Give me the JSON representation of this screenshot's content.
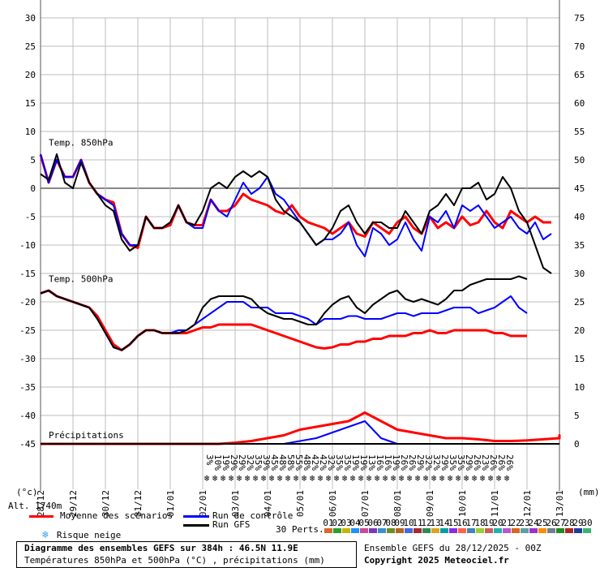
{
  "chart_data": {
    "type": "line",
    "title": "Diagramme des ensembles GEFS sur 384h : 46.5N 11.9E",
    "subtitle": "Températures 850hPa et 500hPa (°C) , précipitations (mm)",
    "run_info": "Ensemble GEFS du 28/12/2025 - 00Z",
    "copyright": "Copyright 2025 Meteociel.fr",
    "left_axis_unit": "(°c)",
    "right_axis_unit": "(mm)",
    "altitude_label": "Alt. 1740m",
    "left_ticks": [
      "30",
      "25",
      "20",
      "15",
      "10",
      "5",
      "0",
      "-5",
      "-10",
      "-15",
      "-20",
      "-25",
      "-30",
      "-35",
      "-40",
      "-45"
    ],
    "right_ticks": [
      "75",
      "70",
      "65",
      "60",
      "55",
      "50",
      "45",
      "40",
      "35",
      "30",
      "25",
      "20",
      "15",
      "10",
      "5",
      "0"
    ],
    "ylim_temp": [
      -45,
      30
    ],
    "ylim_precip": [
      0,
      75
    ],
    "x_ticks": [
      "28/12",
      "29/12",
      "30/12",
      "31/12",
      "01/01",
      "02/01",
      "03/01",
      "04/01",
      "05/01",
      "06/01",
      "07/01",
      "08/01",
      "09/01",
      "10/01",
      "11/01",
      "12/01",
      "13/01"
    ],
    "grid": true,
    "panel_labels": {
      "t850": "Temp. 850hPa",
      "t500": "Temp. 500hPa",
      "precip": "Précipitations"
    },
    "snow_risk_percent": [
      "3%",
      "10%",
      "19%",
      "29%",
      "29%",
      "32%",
      "35%",
      "39%",
      "45%",
      "48%",
      "58%",
      "55%",
      "48%",
      "42%",
      "42%",
      "32%",
      "35%",
      "35%",
      "19%",
      "19%",
      "13%",
      "16%",
      "16%",
      "19%",
      "26%",
      "26%",
      "29%",
      "32%",
      "32%",
      "29%",
      "35%",
      "35%",
      "29%",
      "26%",
      "23%",
      "26%",
      "26%",
      "26%"
    ],
    "snow_risk_start_day": 5.0,
    "snow_risk_step_days": 0.25,
    "series": [
      {
        "name": "Moyenne des scénarios",
        "color": "#ff0000",
        "group": "t850",
        "x_start": 0,
        "x_step": 0.25,
        "values": [
          5.9,
          1,
          5,
          2,
          2,
          5,
          1,
          -1,
          -2,
          -2.5,
          -8,
          -10,
          -10.5,
          -5,
          -7,
          -7,
          -6.5,
          -3,
          -6,
          -6.5,
          -6.5,
          -2,
          -4,
          -4,
          -3,
          -1,
          -2,
          -2.5,
          -3,
          -4,
          -4.5,
          -3,
          -5,
          -6,
          -6.5,
          -7,
          -8,
          -7,
          -6,
          -8,
          -8.5,
          -6,
          -7,
          -8,
          -6,
          -5,
          -7,
          -8,
          -5,
          -7,
          -6,
          -7,
          -5,
          -6.5,
          -6,
          -4,
          -6,
          -7,
          -4,
          -5,
          -6,
          -5,
          -6,
          -6
        ]
      },
      {
        "name": "Run de contrôle",
        "color": "#0000ff",
        "group": "t850",
        "x_start": 0,
        "x_step": 0.25,
        "values": [
          6,
          1,
          5,
          2,
          2,
          5,
          1,
          -1,
          -2,
          -3,
          -8,
          -10,
          -10,
          -5,
          -7,
          -7,
          -6,
          -3,
          -6,
          -7,
          -7,
          -2,
          -4,
          -5,
          -2,
          1,
          -1,
          0,
          2,
          -1,
          -2,
          -4,
          -6,
          -8,
          -10,
          -9,
          -9,
          -8,
          -6,
          -10,
          -12,
          -7,
          -8,
          -10,
          -9,
          -6,
          -9,
          -11,
          -5,
          -6,
          -4,
          -7,
          -3,
          -4,
          -3,
          -5,
          -7,
          -6,
          -5,
          -7,
          -8,
          -6,
          -9,
          -8
        ]
      },
      {
        "name": "Run GFS",
        "color": "#000000",
        "group": "t850",
        "x_start": 0,
        "x_step": 0.25,
        "values": [
          2.5,
          1.5,
          6,
          1,
          0,
          4.5,
          1,
          -1,
          -3,
          -4,
          -9,
          -11,
          -10,
          -5,
          -7,
          -7,
          -6,
          -3,
          -6,
          -6.5,
          -4,
          0,
          1,
          0,
          2,
          3,
          2,
          3,
          2,
          -2,
          -4,
          -5,
          -6,
          -8,
          -10,
          -9,
          -7,
          -4,
          -3,
          -6,
          -8,
          -6,
          -6,
          -7,
          -7,
          -4,
          -6,
          -8,
          -4,
          -3,
          -1,
          -3,
          0,
          0,
          1,
          -2,
          -1,
          2,
          0,
          -4,
          -6,
          -10,
          -14,
          -15
        ]
      },
      {
        "name": "Moyenne des scénarios",
        "color": "#ff0000",
        "group": "t500",
        "x_start": 0,
        "x_step": 0.25,
        "values": [
          -18.5,
          -18,
          -19,
          -19.5,
          -20,
          -20.5,
          -21,
          -22.5,
          -25,
          -27.5,
          -28.5,
          -27.5,
          -26,
          -25,
          -25,
          -25.5,
          -25.5,
          -25.5,
          -25.5,
          -25,
          -24.5,
          -24.5,
          -24,
          -24,
          -24,
          -24,
          -24,
          -24.5,
          -25,
          -25.5,
          -26,
          -26.5,
          -27,
          -27.5,
          -28,
          -28.2,
          -28,
          -27.5,
          -27.5,
          -27,
          -27,
          -26.5,
          -26.5,
          -26,
          -26,
          -26,
          -25.5,
          -25.5,
          -25,
          -25.5,
          -25.5,
          -25,
          -25,
          -25,
          -25,
          -25,
          -25.5,
          -25.5,
          -26,
          -26,
          -26
        ]
      },
      {
        "name": "Run de contrôle",
        "color": "#0000ff",
        "group": "t500",
        "x_start": 0,
        "x_step": 0.25,
        "values": [
          -18.5,
          -18,
          -19,
          -19.5,
          -20,
          -20.5,
          -21,
          -23,
          -25.5,
          -28,
          -28.5,
          -27.5,
          -26,
          -25,
          -25,
          -25.5,
          -25.5,
          -25,
          -25,
          -24,
          -23,
          -22,
          -21,
          -20,
          -20,
          -20,
          -21,
          -21,
          -21,
          -22,
          -22,
          -22,
          -22.5,
          -23,
          -24,
          -23,
          -23,
          -23,
          -22.5,
          -22.5,
          -23,
          -23,
          -23,
          -22.5,
          -22,
          -22,
          -22.5,
          -22,
          -22,
          -22,
          -21.5,
          -21,
          -21,
          -21,
          -22,
          -21.5,
          -21,
          -20,
          -19,
          -21,
          -22
        ]
      },
      {
        "name": "Run GFS",
        "color": "#000000",
        "group": "t500",
        "x_start": 0,
        "x_step": 0.25,
        "values": [
          -18.5,
          -18,
          -19,
          -19.5,
          -20,
          -20.5,
          -21,
          -23,
          -25.5,
          -28,
          -28.5,
          -27.5,
          -26,
          -25,
          -25,
          -25.5,
          -25.5,
          -25.5,
          -25,
          -24,
          -21,
          -19.5,
          -19,
          -19,
          -19,
          -19,
          -19.5,
          -21,
          -22,
          -22.5,
          -23,
          -23,
          -23.5,
          -24,
          -24,
          -22,
          -20.5,
          -19.5,
          -19,
          -21,
          -22,
          -20.5,
          -19.5,
          -18.5,
          -18,
          -19.5,
          -20,
          -19.5,
          -20,
          -20.5,
          -19.5,
          -18,
          -18,
          -17,
          -16.5,
          -16,
          -16,
          -16,
          -16,
          -15.5,
          -16
        ]
      },
      {
        "name": "Moyenne des scénarios",
        "color": "#ff0000",
        "group": "precip",
        "x_start": 0,
        "x_step": 0.5,
        "values": [
          0,
          0,
          0,
          0,
          0,
          0,
          0,
          0,
          0,
          0,
          0,
          0,
          0.2,
          0.5,
          1,
          1.5,
          2.5,
          3,
          3.5,
          4,
          5.5,
          4,
          2.5,
          2,
          1.5,
          1,
          1,
          0.8,
          0.5,
          0.5,
          0.6,
          0.8,
          1,
          1.2,
          1.3,
          1,
          1.2,
          1.5,
          1
        ]
      },
      {
        "name": "Run de contrôle",
        "color": "#0000ff",
        "group": "precip",
        "x_start": 0,
        "x_step": 0.5,
        "values": [
          0,
          0,
          0,
          0,
          0,
          0,
          0,
          0,
          0,
          0,
          0,
          0,
          0,
          0,
          0,
          0,
          0.5,
          1,
          2,
          3,
          4,
          1,
          0,
          0,
          0,
          0,
          0,
          0,
          0,
          0,
          0,
          0,
          0,
          0,
          0,
          0,
          0,
          0,
          0
        ]
      },
      {
        "name": "Run GFS",
        "color": "#000000",
        "group": "precip",
        "x_start": 0,
        "x_step": 0.5,
        "values": [
          0,
          0,
          0,
          0,
          0,
          0,
          0,
          0,
          0,
          0,
          0,
          0,
          0,
          0,
          0,
          0,
          0,
          0,
          0,
          0,
          0,
          0,
          0,
          0,
          0,
          0,
          0,
          0,
          0,
          0,
          0,
          0,
          0,
          0,
          0,
          0,
          0,
          0,
          0
        ]
      }
    ],
    "perturbations_label": "30 Perts.",
    "perturbation_ids": [
      "01",
      "02",
      "03",
      "04",
      "05",
      "06",
      "07",
      "08",
      "09",
      "10",
      "11",
      "12",
      "13",
      "14",
      "15",
      "16",
      "17",
      "18",
      "19",
      "20",
      "21",
      "22",
      "23",
      "24",
      "25",
      "26",
      "27",
      "28",
      "29",
      "30"
    ],
    "perturbation_colors": [
      "#d86a2a",
      "#2aa02a",
      "#c8b400",
      "#1e90ff",
      "#c84b97",
      "#7a3ab8",
      "#3a8fd0",
      "#6b8e23",
      "#b5651d",
      "#4169e1",
      "#a52a2a",
      "#2e8b57",
      "#daa520",
      "#00a0a0",
      "#8a2be2",
      "#ff6347",
      "#4682b4",
      "#9acd32",
      "#cd5c5c",
      "#20b2aa",
      "#ba55d3",
      "#d2691e",
      "#5f9ea0",
      "#9932cc",
      "#ff8c00",
      "#708090",
      "#228b22",
      "#b22222",
      "#1e3c9a",
      "#3cb371"
    ]
  },
  "legend": {
    "mean": "Moyenne des scénarios",
    "control": "Run de contrôle",
    "gfs": "Run GFS",
    "snow": "Risque neige",
    "mean_color": "#ff0000",
    "control_color": "#0000ff",
    "gfs_color": "#000000",
    "snow_color": "#3ba3e6"
  }
}
